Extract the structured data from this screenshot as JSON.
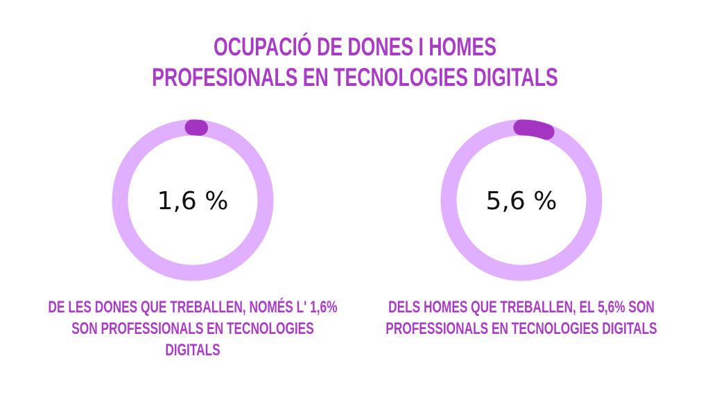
{
  "chart_data": [
    {
      "type": "pie",
      "variant": "donut",
      "value": 1.6,
      "unit": "%",
      "label": "1,6 %",
      "caption": [
        "DE LES DONES QUE TREBALLEN, NOMÉS L' 1,6%",
        "SON PROFESSIONALS EN TECNOLOGIES",
        "DIGITALS"
      ]
    },
    {
      "type": "pie",
      "variant": "donut",
      "value": 5.6,
      "unit": "%",
      "label": "5,6 %",
      "caption": [
        "DELS HOMES QUE TREBALLEN, EL 5,6% SON",
        "PROFESSIONALS EN TECNOLOGIES DIGITALS"
      ]
    }
  ],
  "title": [
    "OCUPACIÓ DE DONES I HOMES",
    "PROFESIONALS EN TECNOLOGIES DIGITALS"
  ],
  "colors": {
    "ring": "#E0B0FF",
    "arc": "#A435C2",
    "text": "#A93CC4"
  }
}
